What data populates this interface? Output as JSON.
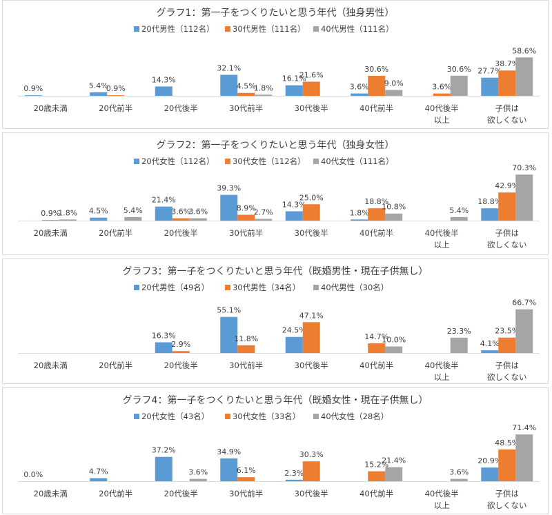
{
  "colors": {
    "series1": "#5b9bd5",
    "series2": "#ed7d31",
    "series3": "#a5a5a5",
    "axis": "#d9d9d9",
    "text": "#404040"
  },
  "chart_data": [
    {
      "type": "bar",
      "title": "グラフ1：第一子をつくりたいと思う年代（独身男性）",
      "categories": [
        "20歳未満",
        "20代前半",
        "20代後半",
        "30代前半",
        "30代後半",
        "40代前半",
        "40代後半\n以上",
        "子供は\n欲しくない"
      ],
      "series": [
        {
          "name": "20代男性（112名）",
          "values": [
            0.9,
            5.4,
            14.3,
            32.1,
            16.1,
            3.6,
            null,
            27.7
          ]
        },
        {
          "name": "30代男性（111名）",
          "values": [
            null,
            0.9,
            null,
            4.5,
            21.6,
            30.6,
            3.6,
            38.7
          ]
        },
        {
          "name": "40代男性（111名）",
          "values": [
            null,
            null,
            null,
            1.8,
            null,
            9.0,
            30.6,
            58.6
          ]
        }
      ],
      "unit": "%",
      "legend": "top",
      "grid": false
    },
    {
      "type": "bar",
      "title": "グラフ2：第一子をつくりたいと思う年代（独身女性）",
      "categories": [
        "20歳未満",
        "20代前半",
        "20代後半",
        "30代前半",
        "30代後半",
        "40代前半",
        "40代後半\n以上",
        "子供は\n欲しくない"
      ],
      "series": [
        {
          "name": "20代女性（112名）",
          "values": [
            null,
            4.5,
            21.4,
            39.3,
            14.3,
            1.8,
            null,
            18.8
          ]
        },
        {
          "name": "30代女性（112名）",
          "values": [
            0.9,
            null,
            3.6,
            8.9,
            25.0,
            18.8,
            null,
            42.9
          ]
        },
        {
          "name": "40代女性（111名）",
          "values": [
            1.8,
            5.4,
            3.6,
            2.7,
            null,
            10.8,
            5.4,
            70.3
          ]
        }
      ],
      "unit": "%",
      "legend": "top",
      "grid": false
    },
    {
      "type": "bar",
      "title": "グラフ3：第一子をつくりたいと思う年代（既婚男性・現在子供無し）",
      "categories": [
        "20歳未満",
        "20代前半",
        "20代後半",
        "30代前半",
        "30代後半",
        "40代前半",
        "40代後半\n以上",
        "子供は\n欲しくない"
      ],
      "series": [
        {
          "name": "20代男性（49名）",
          "values": [
            null,
            null,
            16.3,
            55.1,
            24.5,
            null,
            null,
            4.1
          ]
        },
        {
          "name": "30代男性（34名）",
          "values": [
            null,
            null,
            2.9,
            11.8,
            47.1,
            14.7,
            null,
            23.5
          ]
        },
        {
          "name": "40代男性（30名）",
          "values": [
            null,
            null,
            null,
            null,
            null,
            10.0,
            23.3,
            66.7
          ]
        }
      ],
      "unit": "%",
      "legend": "top",
      "grid": false
    },
    {
      "type": "bar",
      "title": "グラフ4：第一子をつくりたいと思う年代（既婚女性・現在子供無し）",
      "categories": [
        "20歳未満",
        "20代前半",
        "20代後半",
        "30代前半",
        "30代後半",
        "40代前半",
        "40代後半\n以上",
        "子供は\n欲しくない"
      ],
      "series": [
        {
          "name": "20代女性（43名）",
          "values": [
            0.0,
            4.7,
            37.2,
            34.9,
            2.3,
            null,
            null,
            20.9
          ]
        },
        {
          "name": "30代女性（33名）",
          "values": [
            null,
            null,
            null,
            6.1,
            30.3,
            15.2,
            null,
            48.5
          ]
        },
        {
          "name": "40代女性（28名）",
          "values": [
            null,
            null,
            3.6,
            null,
            null,
            21.4,
            3.6,
            71.4
          ]
        }
      ],
      "unit": "%",
      "legend": "top",
      "grid": false
    }
  ]
}
